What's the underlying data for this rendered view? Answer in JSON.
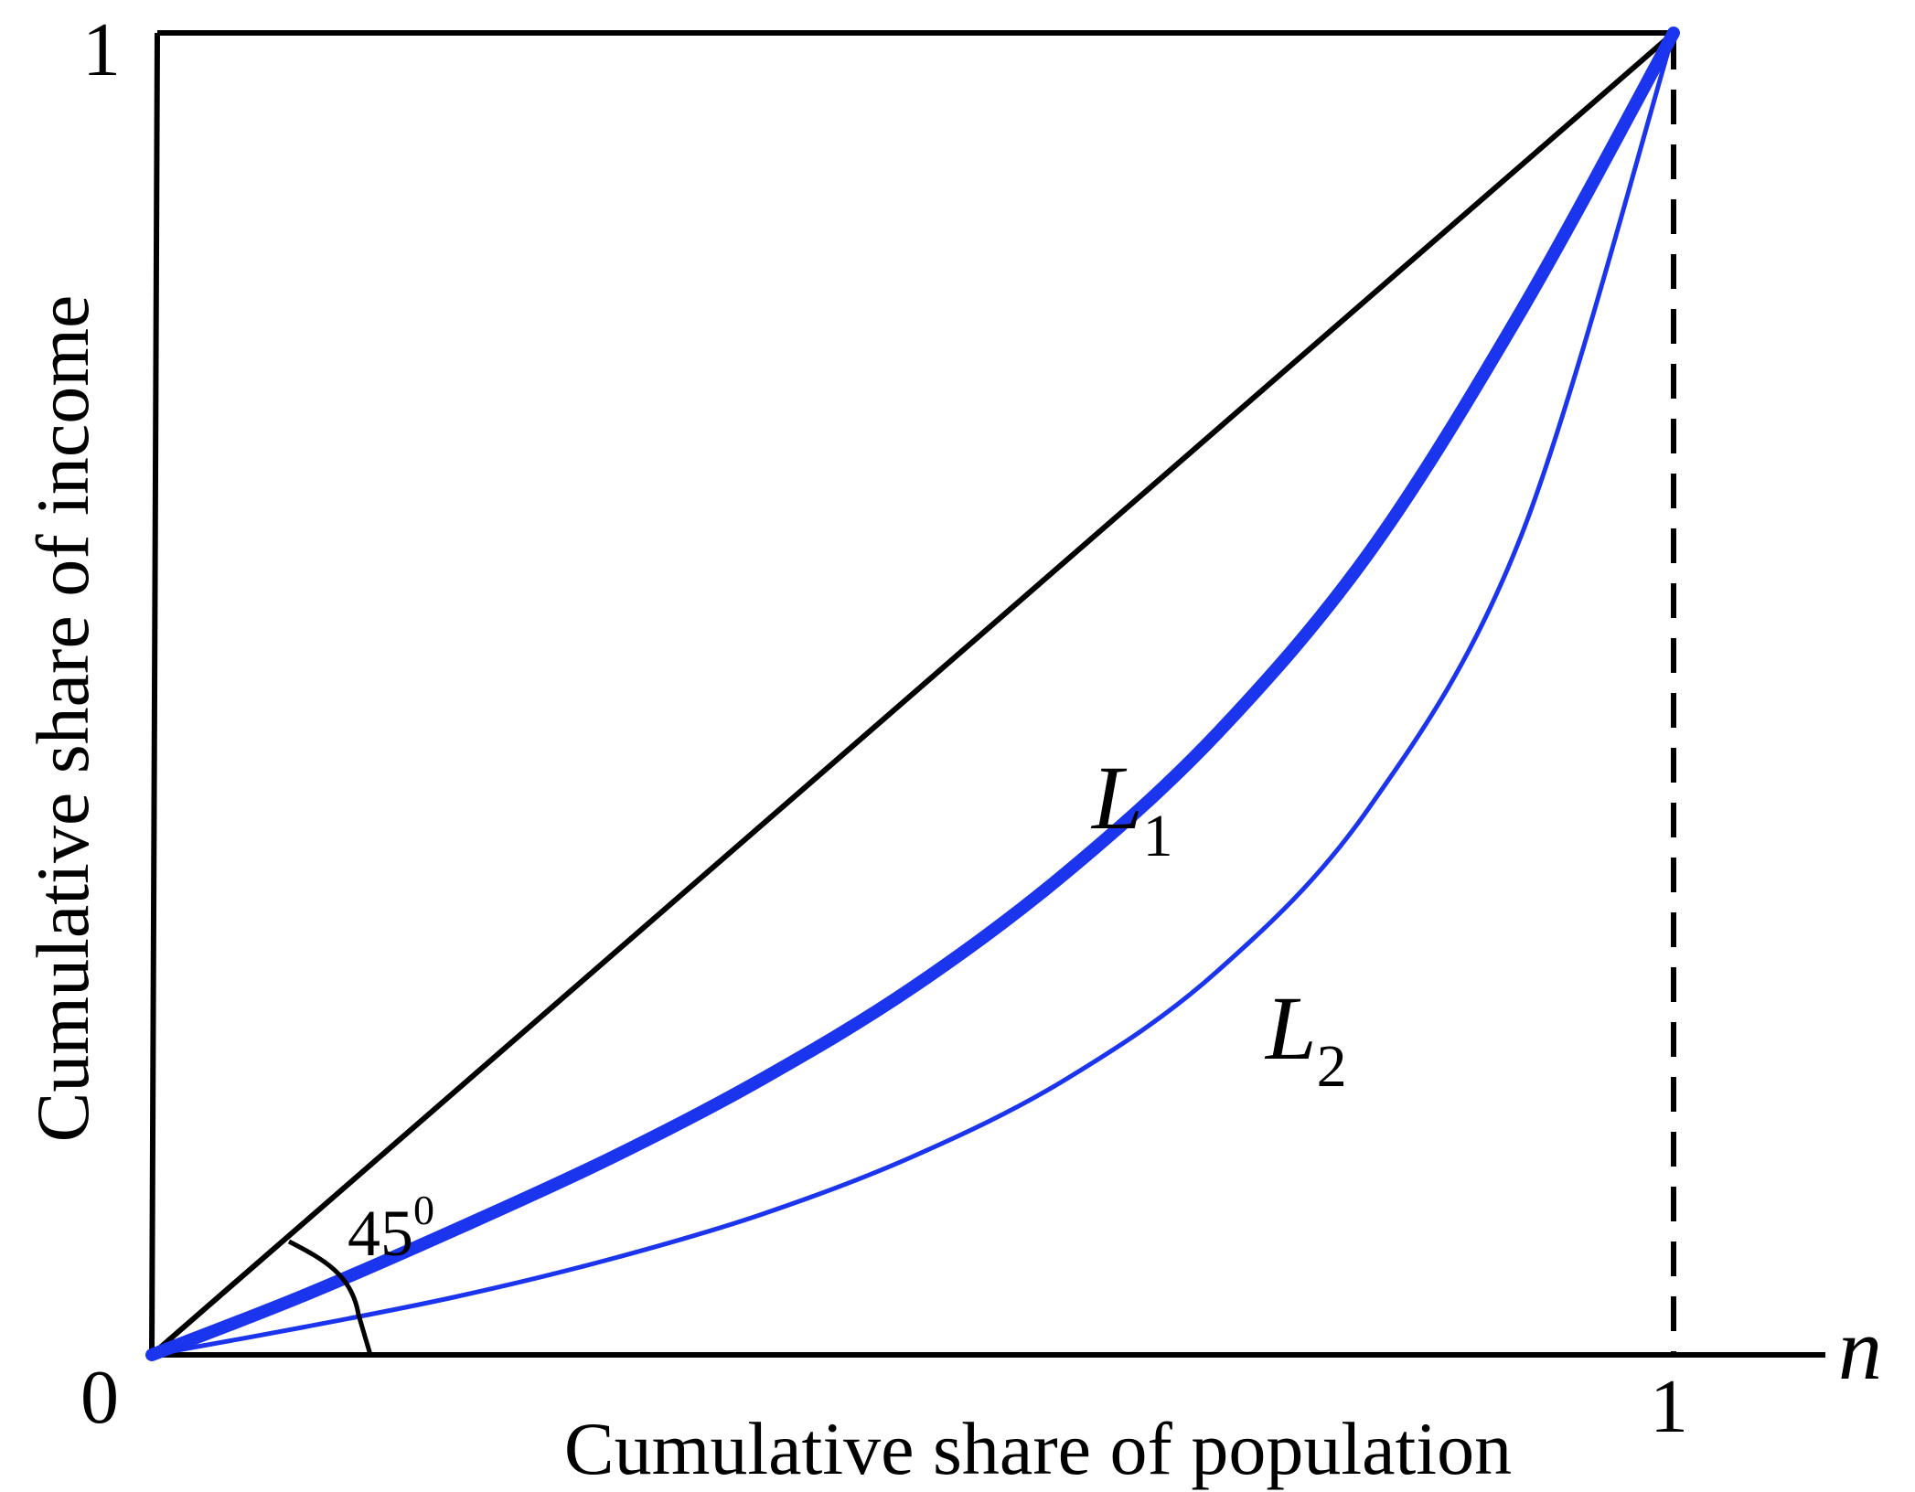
{
  "chart_data": {
    "type": "line",
    "title": "",
    "xlabel": "Cumulative share of population",
    "ylabel": "Cumulative share of income",
    "x_axis_variable": "n",
    "xlim": [
      0,
      1
    ],
    "ylim": [
      0,
      1
    ],
    "x_ticks": [
      "0",
      "1"
    ],
    "y_ticks": [
      "0",
      "1"
    ],
    "grid": false,
    "angle_annotation": {
      "base": "45",
      "superscript": "0"
    },
    "series": [
      {
        "name": "equality",
        "label": "",
        "color": "#000000",
        "style": "solid",
        "x": [
          0,
          1
        ],
        "y": [
          0,
          1
        ]
      },
      {
        "name": "L1",
        "label": {
          "base": "L",
          "sub": "1"
        },
        "color": "#1b35ee",
        "style": "thick",
        "x": [
          0,
          0.1,
          0.2,
          0.3,
          0.4,
          0.5,
          0.6,
          0.7,
          0.8,
          0.9,
          1.0
        ],
        "y": [
          0,
          0.045,
          0.095,
          0.148,
          0.208,
          0.278,
          0.364,
          0.47,
          0.607,
          0.79,
          1.0
        ]
      },
      {
        "name": "L2",
        "label": {
          "base": "L",
          "sub": "2"
        },
        "color": "#1b35ee",
        "style": "thin",
        "x": [
          0,
          0.1,
          0.2,
          0.3,
          0.4,
          0.5,
          0.6,
          0.7,
          0.8,
          0.9,
          1.0
        ],
        "y": [
          0,
          0.021,
          0.044,
          0.072,
          0.106,
          0.15,
          0.208,
          0.29,
          0.414,
          0.62,
          1.0
        ]
      }
    ]
  }
}
